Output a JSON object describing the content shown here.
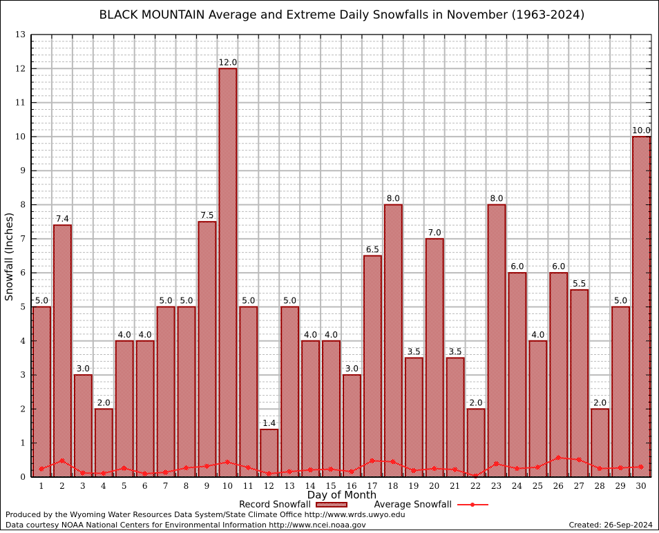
{
  "chart_data": {
    "type": "bar",
    "title": "BLACK MOUNTAIN Average and Extreme Daily Snowfalls in November (1963-2024)",
    "xlabel": "Day of Month",
    "ylabel": "Snowfall (Inches)",
    "ylim": [
      0,
      13
    ],
    "yticks": [
      "0",
      "1",
      "2",
      "3",
      "4",
      "5",
      "6",
      "7",
      "8",
      "9",
      "10",
      "11",
      "12",
      "13"
    ],
    "grid": true,
    "categories": [
      "1",
      "2",
      "3",
      "4",
      "5",
      "6",
      "7",
      "8",
      "9",
      "10",
      "11",
      "12",
      "13",
      "14",
      "15",
      "16",
      "17",
      "18",
      "19",
      "20",
      "21",
      "22",
      "23",
      "24",
      "25",
      "26",
      "27",
      "28",
      "29",
      "30"
    ],
    "series": [
      {
        "name": "Record Snowfall",
        "type": "bar",
        "color": "#990000",
        "values": [
          5.0,
          7.4,
          3.0,
          2.0,
          4.0,
          4.0,
          5.0,
          5.0,
          7.5,
          12.0,
          5.0,
          1.4,
          5.0,
          4.0,
          4.0,
          3.0,
          6.5,
          8.0,
          3.5,
          7.0,
          3.5,
          2.0,
          8.0,
          6.0,
          4.0,
          6.0,
          5.5,
          2.0,
          5.0,
          10.0
        ],
        "labels": [
          "5.0",
          "7.4",
          "3.0",
          "2.0",
          "4.0",
          "4.0",
          "5.0",
          "5.0",
          "7.5",
          "12.0",
          "5.0",
          "1.4",
          "5.0",
          "4.0",
          "4.0",
          "3.0",
          "6.5",
          "8.0",
          "3.5",
          "7.0",
          "3.5",
          "2.0",
          "8.0",
          "6.0",
          "4.0",
          "6.0",
          "5.5",
          "2.0",
          "5.0",
          "10.0"
        ]
      },
      {
        "name": "Average Snowfall",
        "type": "line",
        "color": "#ff2222",
        "values": [
          0.24,
          0.48,
          0.12,
          0.11,
          0.26,
          0.1,
          0.14,
          0.27,
          0.32,
          0.44,
          0.28,
          0.1,
          0.16,
          0.21,
          0.23,
          0.16,
          0.48,
          0.45,
          0.19,
          0.25,
          0.22,
          0.03,
          0.39,
          0.25,
          0.29,
          0.57,
          0.51,
          0.25,
          0.27,
          0.3
        ]
      }
    ],
    "legend": {
      "placement": "bottom-center",
      "entries": [
        "Record Snowfall",
        "Average Snowfall"
      ]
    }
  },
  "footer": {
    "line1": "Produced by the Wyoming Water Resources Data System/State Climate Office http://www.wrds.uwyo.edu",
    "line2": "Data courtesy NOAA National Centers for Environmental Information http://www.ncei.noaa.gov",
    "created": "Created: 26-Sep-2024"
  }
}
